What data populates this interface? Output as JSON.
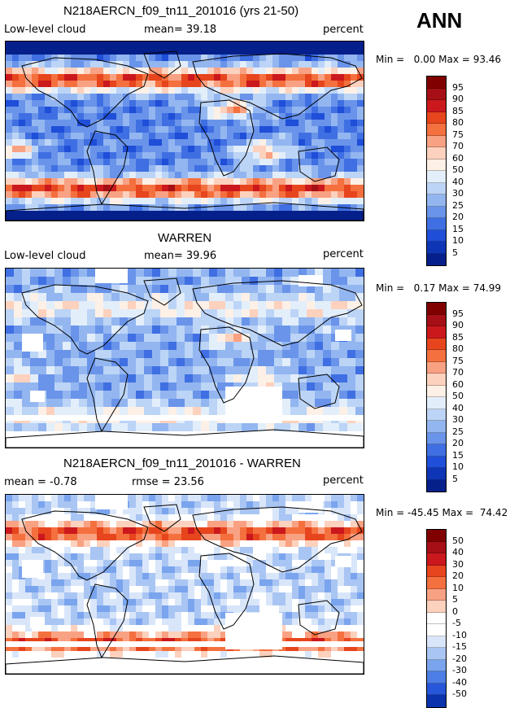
{
  "season": "ANN",
  "panels": [
    {
      "title": "N218AERCN_f09_tn11_201016 (yrs 21-50)",
      "left_label": "Low-level cloud",
      "center_label": "mean=  39.18",
      "right_label": "percent",
      "min_label": "Min =",
      "min_value": "0.00",
      "max_label": "Max =",
      "max_value": "93.46",
      "colorbar_labels": [
        "95",
        "90",
        "85",
        "80",
        "75",
        "70",
        "60",
        "50",
        "40",
        "30",
        "25",
        "20",
        "15",
        "10",
        "5"
      ]
    },
    {
      "title": "WARREN",
      "left_label": "Low-level cloud",
      "center_label": "mean=  39.96",
      "right_label": "percent",
      "min_label": "Min =",
      "min_value": "0.17",
      "max_label": "Max =",
      "max_value": "74.99",
      "colorbar_labels": [
        "95",
        "90",
        "85",
        "80",
        "75",
        "70",
        "60",
        "50",
        "40",
        "30",
        "25",
        "20",
        "15",
        "10",
        "5"
      ]
    },
    {
      "title": "N218AERCN_f09_tn11_201016 - WARREN",
      "left_label": "mean =  -0.78",
      "center_label": "rmse =  23.56",
      "right_label": "percent",
      "min_label": "Min =",
      "min_value": "-45.45",
      "max_label": "Max =",
      "max_value": "74.42",
      "colorbar_labels": [
        "50",
        "40",
        "30",
        "20",
        "10",
        "5",
        "0",
        "-5",
        "-10",
        "-15",
        "-20",
        "-30",
        "-40",
        "-50"
      ]
    }
  ],
  "colors": {
    "abs_scale": [
      "#800000",
      "#a50f15",
      "#cb181d",
      "#e7451d",
      "#f4703e",
      "#f9a183",
      "#fcd1bd",
      "#fdf0e6",
      "#e3eefb",
      "#bcd4f6",
      "#93b6f0",
      "#6a94ea",
      "#3f6fe2",
      "#1f4ed8",
      "#0e35b5",
      "#05208a"
    ],
    "diff_scale": [
      "#800000",
      "#a50f15",
      "#cb181d",
      "#e7451d",
      "#f4703e",
      "#f9a183",
      "#fcd1bd",
      "#ffffff",
      "#ffffff",
      "#d9e6fa",
      "#a9c5f3",
      "#7aa4ed",
      "#4d7de5",
      "#2656d9",
      "#0b33ad"
    ]
  }
}
